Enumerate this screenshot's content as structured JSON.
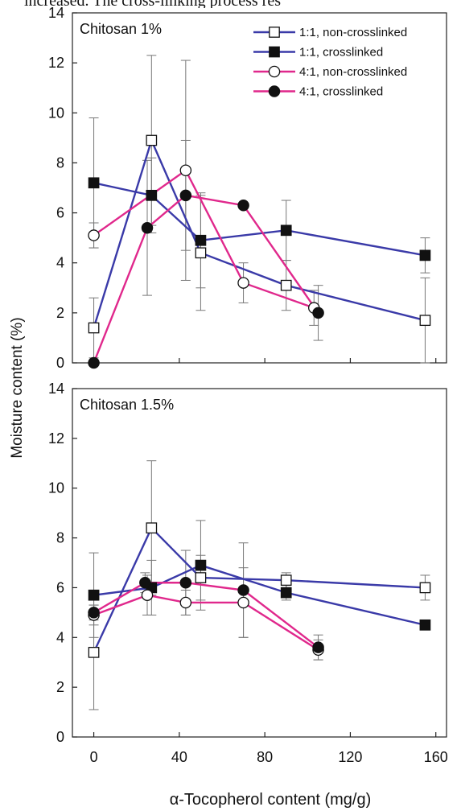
{
  "header_fragment": "increased.  The  cross-linking  process  res",
  "figure": {
    "ylabel": "Moisture content (%)",
    "xlabel": "α-Tocopherol content (mg/g)",
    "x_ticks": [
      0,
      40,
      80,
      120,
      160
    ],
    "y_ticks": [
      0,
      2,
      4,
      6,
      8,
      10,
      12,
      14
    ]
  },
  "legend": [
    {
      "label": "1:1, non-crosslinked",
      "color": "#3a3aa8",
      "marker": "square-open"
    },
    {
      "label": "1:1, crosslinked",
      "color": "#3a3aa8",
      "marker": "square-filled"
    },
    {
      "label": "4:1, non-crosslinked",
      "color": "#e0288c",
      "marker": "circle-open"
    },
    {
      "label": "4:1, crosslinked",
      "color": "#e0288c",
      "marker": "circle-filled"
    }
  ],
  "chart_data": [
    {
      "type": "line",
      "title": "Chitosan 1%",
      "xlim": [
        -10,
        165
      ],
      "ylim": [
        0,
        14
      ],
      "series": [
        {
          "name": "1:1, non-crosslinked",
          "color": "#3a3aa8",
          "marker": "square-open",
          "x": [
            0,
            27,
            50,
            90,
            155
          ],
          "y": [
            1.4,
            8.9,
            4.4,
            3.1,
            1.7
          ],
          "err": [
            1.2,
            3.4,
            2.3,
            1.0,
            1.7
          ]
        },
        {
          "name": "1:1, crosslinked",
          "color": "#3a3aa8",
          "marker": "square-filled",
          "x": [
            0,
            27,
            50,
            90,
            155
          ],
          "y": [
            7.2,
            6.7,
            4.9,
            5.3,
            4.3
          ],
          "err": [
            2.6,
            1.5,
            1.9,
            1.2,
            0.7
          ]
        },
        {
          "name": "4:1, non-crosslinked",
          "color": "#e0288c",
          "marker": "circle-open",
          "x": [
            0,
            43,
            70,
            103
          ],
          "y": [
            5.1,
            7.7,
            3.2,
            2.2
          ],
          "err": [
            0.5,
            4.4,
            0.8,
            0.7
          ]
        },
        {
          "name": "4:1, crosslinked",
          "color": "#e0288c",
          "marker": "circle-filled",
          "x": [
            0,
            25,
            43,
            70,
            105
          ],
          "y": [
            0.0,
            5.4,
            6.7,
            6.3,
            2.0
          ],
          "err": [
            0,
            2.7,
            2.2,
            0.1,
            1.1
          ]
        }
      ]
    },
    {
      "type": "line",
      "title": "Chitosan 1.5%",
      "xlim": [
        -10,
        165
      ],
      "ylim": [
        0,
        14
      ],
      "series": [
        {
          "name": "1:1, non-crosslinked",
          "color": "#3a3aa8",
          "marker": "square-open",
          "x": [
            0,
            27,
            50,
            90,
            155
          ],
          "y": [
            3.4,
            8.4,
            6.4,
            6.3,
            6.0
          ],
          "err": [
            2.3,
            2.7,
            0.9,
            0.3,
            0.5
          ]
        },
        {
          "name": "1:1, crosslinked",
          "color": "#3a3aa8",
          "marker": "square-filled",
          "x": [
            0,
            27,
            50,
            90,
            155
          ],
          "y": [
            5.7,
            6.0,
            6.9,
            5.8,
            4.5
          ],
          "err": [
            1.7,
            1.1,
            1.8,
            0.3,
            0.1
          ]
        },
        {
          "name": "4:1, non-crosslinked",
          "color": "#e0288c",
          "marker": "circle-open",
          "x": [
            0,
            25,
            43,
            70,
            105
          ],
          "y": [
            4.9,
            5.7,
            5.4,
            5.4,
            3.5
          ],
          "err": [
            0.4,
            0.8,
            0.5,
            1.4,
            0.4
          ]
        },
        {
          "name": "4:1, crosslinked",
          "color": "#e0288c",
          "marker": "circle-filled",
          "x": [
            0,
            24,
            43,
            70,
            105
          ],
          "y": [
            5.0,
            6.2,
            6.2,
            5.9,
            3.6
          ],
          "err": [
            0.3,
            0.4,
            1.3,
            1.9,
            0.5
          ]
        }
      ]
    }
  ]
}
